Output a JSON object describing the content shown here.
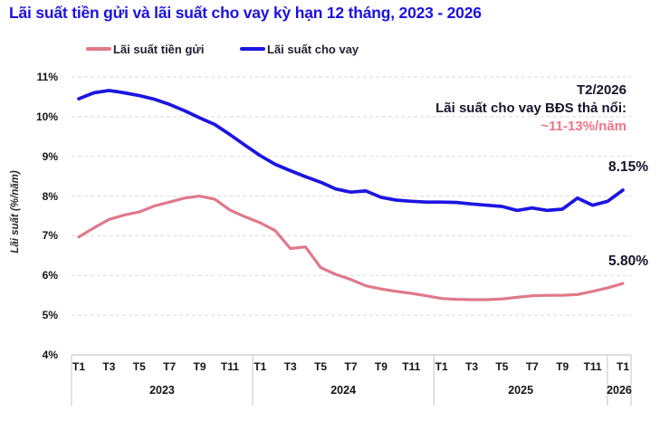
{
  "header": {
    "title": "Lãi suất tiền gửi và lãi suất cho vay kỳ hạn 12 tháng, 2023 - 2026"
  },
  "legend": {
    "items": [
      {
        "label": "Lãi suất tiền gửi",
        "color": "#e0798b"
      },
      {
        "label": "Lãi suất cho vay",
        "color": "#1c15e0"
      }
    ]
  },
  "annotation": {
    "line1": "T2/2026",
    "line2": "Lãi suất cho vay BĐS thả nổi:",
    "line3": "~11-13%/năm"
  },
  "colors": {
    "title_blue": "#1d12dd",
    "deposit_pink": "#e0798b",
    "lending_blue": "#1c15e0",
    "annotation_pink": "#ee7488",
    "gridline": "#d9d9d9",
    "axis_line": "#c9c9c9",
    "text_dark": "#14142a"
  },
  "chart_data": {
    "type": "line",
    "title": "Lãi suất tiền gửi và lãi suất cho vay kỳ hạn 12 tháng, 2023 - 2026",
    "ylabel": "Lãi suất (%/năm)",
    "xlabel": "",
    "ylim": [
      4,
      11
    ],
    "yticks": [
      "11%",
      "10%",
      "9%",
      "8%",
      "7%",
      "6%",
      "5%",
      "4%"
    ],
    "ytick_values": [
      11,
      10,
      9,
      8,
      7,
      6,
      5,
      4
    ],
    "grid": "horizontal-dashed",
    "legend_position": "top",
    "years": [
      {
        "label": "2023",
        "months": [
          "T1",
          "T3",
          "T5",
          "T7",
          "T9",
          "T11"
        ]
      },
      {
        "label": "2024",
        "months": [
          "T1",
          "T3",
          "T5",
          "T7",
          "T9",
          "T11"
        ]
      },
      {
        "label": "2025",
        "months": [
          "T1",
          "T3",
          "T5",
          "T7",
          "T9",
          "T11"
        ]
      },
      {
        "label": "2026",
        "months": [
          "T1"
        ]
      }
    ],
    "x_months_total": 37,
    "series": [
      {
        "name": "Lãi suất tiền gửi",
        "color": "#e0798b",
        "stroke_width": 3.2,
        "end_label": "5.80%",
        "values": [
          6.97,
          7.2,
          7.41,
          7.52,
          7.6,
          7.75,
          7.85,
          7.95,
          8.0,
          7.92,
          7.65,
          7.48,
          7.33,
          7.13,
          6.68,
          6.72,
          6.2,
          6.03,
          5.9,
          5.74,
          5.66,
          5.6,
          5.55,
          5.49,
          5.42,
          5.4,
          5.39,
          5.39,
          5.41,
          5.45,
          5.49,
          5.5,
          5.5,
          5.52,
          5.6,
          5.69,
          5.8
        ]
      },
      {
        "name": "Lãi suất cho vay",
        "color": "#1c15e0",
        "stroke_width": 3.7,
        "end_label": "8.15%",
        "values": [
          10.45,
          10.6,
          10.66,
          10.6,
          10.53,
          10.44,
          10.31,
          10.15,
          9.97,
          9.8,
          9.55,
          9.28,
          9.02,
          8.8,
          8.64,
          8.49,
          8.35,
          8.18,
          8.1,
          8.13,
          7.97,
          7.9,
          7.87,
          7.85,
          7.85,
          7.84,
          7.8,
          7.77,
          7.74,
          7.64,
          7.7,
          7.64,
          7.67,
          7.95,
          7.77,
          7.87,
          8.15
        ]
      }
    ]
  }
}
